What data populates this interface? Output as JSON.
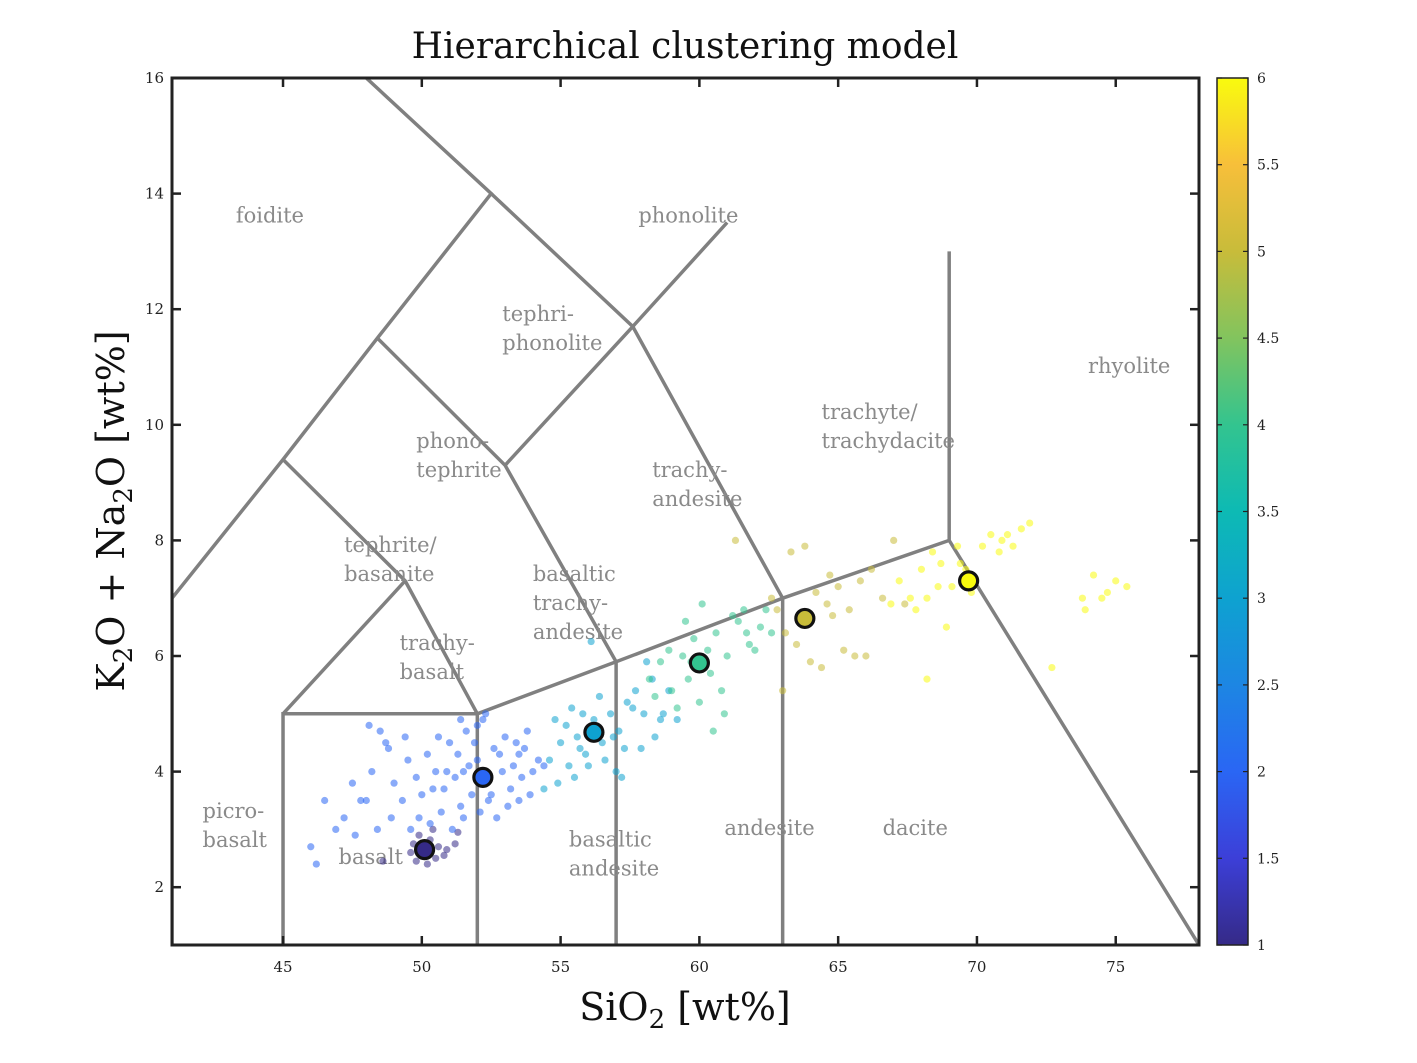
{
  "chart_data": {
    "type": "scatter",
    "title": "Hierarchical clustering model",
    "xlabel": {
      "main": "SiO",
      "sub": "2",
      "unit": " [wt%]"
    },
    "ylabel": {
      "p1": "K",
      "s1": "2",
      "p2": "O + Na",
      "s2": "2",
      "p3": "O [wt%]"
    },
    "xlim": [
      41,
      78
    ],
    "ylim": [
      1,
      16
    ],
    "xticks": [
      45,
      50,
      55,
      60,
      65,
      70,
      75
    ],
    "yticks": [
      2,
      4,
      6,
      8,
      10,
      12,
      14,
      16
    ],
    "grid": false,
    "colorbar": {
      "range": [
        1,
        6
      ],
      "ticks": [
        "1",
        "1.5",
        "2",
        "2.5",
        "3",
        "3.5",
        "4",
        "4.5",
        "5",
        "5.5",
        "6"
      ],
      "colormap": "parula"
    },
    "tas_fields": [
      {
        "name": "foidite",
        "lines": [
          "foidite"
        ],
        "x": 43.3,
        "y": 13.5
      },
      {
        "name": "phonolite",
        "lines": [
          "phonolite"
        ],
        "x": 57.8,
        "y": 13.5
      },
      {
        "name": "tephriphonolite",
        "lines": [
          "tephri-",
          "phonolite"
        ],
        "x": 52.9,
        "y": 11.8
      },
      {
        "name": "phonotephrite",
        "lines": [
          "phono-",
          "tephrite"
        ],
        "x": 49.8,
        "y": 9.6
      },
      {
        "name": "trachyandesite",
        "lines": [
          "trachy-",
          "andesite"
        ],
        "x": 58.3,
        "y": 9.1
      },
      {
        "name": "trachyte",
        "lines": [
          "trachyte/",
          "trachydacite"
        ],
        "x": 64.4,
        "y": 10.1
      },
      {
        "name": "rhyolite",
        "lines": [
          "rhyolite"
        ],
        "x": 74.0,
        "y": 10.9
      },
      {
        "name": "tephrite",
        "lines": [
          "tephrite/",
          "basanite"
        ],
        "x": 47.2,
        "y": 7.8
      },
      {
        "name": "basaltic trachyandesite",
        "lines": [
          "basaltic",
          "trachy-",
          "andesite"
        ],
        "x": 54.0,
        "y": 7.3
      },
      {
        "name": "trachybasalt",
        "lines": [
          "trachy-",
          "basalt"
        ],
        "x": 49.2,
        "y": 6.1
      },
      {
        "name": "picrobasalt",
        "lines": [
          "picro-",
          "basalt"
        ],
        "x": 42.1,
        "y": 3.2
      },
      {
        "name": "basalt",
        "lines": [
          "basalt"
        ],
        "x": 47.0,
        "y": 2.4
      },
      {
        "name": "basaltic andesite",
        "lines": [
          "basaltic",
          "andesite"
        ],
        "x": 55.3,
        "y": 2.7
      },
      {
        "name": "andesite",
        "lines": [
          "andesite"
        ],
        "x": 60.9,
        "y": 2.9
      },
      {
        "name": "dacite",
        "lines": [
          "dacite"
        ],
        "x": 66.6,
        "y": 2.9
      }
    ],
    "boundaries": [
      [
        [
          41,
          7
        ],
        [
          45,
          9.4
        ],
        [
          48.4,
          11.5
        ],
        [
          52.5,
          14
        ],
        [
          48,
          16
        ]
      ],
      [
        [
          41,
          1
        ],
        [
          41,
          7
        ]
      ],
      [
        [
          45,
          1
        ],
        [
          45,
          5
        ],
        [
          52,
          5
        ],
        [
          52,
          1
        ]
      ],
      [
        [
          52,
          5
        ],
        [
          57,
          5.9
        ],
        [
          63,
          7
        ],
        [
          69,
          8
        ]
      ],
      [
        [
          57,
          1
        ],
        [
          57,
          5.9
        ]
      ],
      [
        [
          63,
          1
        ],
        [
          63,
          7
        ]
      ],
      [
        [
          45,
          9.4
        ],
        [
          49.4,
          7.3
        ],
        [
          52,
          5
        ]
      ],
      [
        [
          45,
          5
        ],
        [
          49.4,
          7.3
        ]
      ],
      [
        [
          48.4,
          11.5
        ],
        [
          53,
          9.3
        ],
        [
          57,
          5.9
        ]
      ],
      [
        [
          52.5,
          14
        ],
        [
          57.6,
          11.7
        ],
        [
          61,
          13.5
        ]
      ],
      [
        [
          53,
          9.3
        ],
        [
          57.6,
          11.7
        ],
        [
          63,
          7
        ]
      ],
      [
        [
          69,
          13
        ],
        [
          69,
          8
        ],
        [
          78,
          1
        ]
      ]
    ],
    "cluster_centers": [
      {
        "cluster": 1,
        "x": 50.1,
        "y": 2.65
      },
      {
        "cluster": 2,
        "x": 52.2,
        "y": 3.9
      },
      {
        "cluster": 3,
        "x": 56.2,
        "y": 4.68
      },
      {
        "cluster": 4,
        "x": 60.0,
        "y": 5.88
      },
      {
        "cluster": 5,
        "x": 63.8,
        "y": 6.65
      },
      {
        "cluster": 6,
        "x": 69.7,
        "y": 7.3
      }
    ],
    "series": [
      {
        "cluster": 1,
        "points": [
          [
            50.1,
            2.62
          ],
          [
            49.8,
            2.45
          ],
          [
            50.3,
            2.82
          ],
          [
            50.5,
            2.5
          ],
          [
            49.9,
            2.9
          ],
          [
            50.6,
            2.7
          ],
          [
            49.6,
            2.6
          ],
          [
            50.2,
            2.4
          ],
          [
            50.4,
            3.0
          ],
          [
            49.7,
            2.75
          ],
          [
            50.8,
            2.55
          ],
          [
            51.2,
            2.75
          ],
          [
            51.3,
            2.95
          ],
          [
            50.0,
            2.55
          ],
          [
            48.6,
            2.45
          ],
          [
            50.9,
            2.65
          ]
        ]
      },
      {
        "cluster": 2,
        "points": [
          [
            51.5,
            4.0
          ],
          [
            51.8,
            3.6
          ],
          [
            52.0,
            4.2
          ],
          [
            52.3,
            3.8
          ],
          [
            52.6,
            4.4
          ],
          [
            52.9,
            4.0
          ],
          [
            53.2,
            3.7
          ],
          [
            53.5,
            4.3
          ],
          [
            51.2,
            3.9
          ],
          [
            51.0,
            4.5
          ],
          [
            51.6,
            4.7
          ],
          [
            52.1,
            3.3
          ],
          [
            52.4,
            3.5
          ],
          [
            52.7,
            3.2
          ],
          [
            53.0,
            4.6
          ],
          [
            53.3,
            4.1
          ],
          [
            53.6,
            3.9
          ],
          [
            53.9,
            3.6
          ],
          [
            54.2,
            4.2
          ],
          [
            51.4,
            3.4
          ],
          [
            50.8,
            3.7
          ],
          [
            50.5,
            4.0
          ],
          [
            50.2,
            4.3
          ],
          [
            50.0,
            3.6
          ],
          [
            49.8,
            3.9
          ],
          [
            49.5,
            4.2
          ],
          [
            49.3,
            3.5
          ],
          [
            49.0,
            3.8
          ],
          [
            48.8,
            4.4
          ],
          [
            48.5,
            4.7
          ],
          [
            48.2,
            4.0
          ],
          [
            47.8,
            3.5
          ],
          [
            47.5,
            3.8
          ],
          [
            47.2,
            3.2
          ],
          [
            46.9,
            3.0
          ],
          [
            46.5,
            3.5
          ],
          [
            46.0,
            2.7
          ],
          [
            48.0,
            3.5
          ],
          [
            49.6,
            3.0
          ],
          [
            49.9,
            3.2
          ],
          [
            50.3,
            3.1
          ],
          [
            50.7,
            3.3
          ],
          [
            51.1,
            3.0
          ],
          [
            51.5,
            3.2
          ],
          [
            52.5,
            3.6
          ],
          [
            52.8,
            4.3
          ],
          [
            53.4,
            4.5
          ],
          [
            53.7,
            4.4
          ],
          [
            54.0,
            4.0
          ],
          [
            52.2,
            4.9
          ],
          [
            51.9,
            4.5
          ],
          [
            51.3,
            4.3
          ],
          [
            50.6,
            4.6
          ],
          [
            49.4,
            4.6
          ],
          [
            48.9,
            3.2
          ],
          [
            47.6,
            2.9
          ],
          [
            46.2,
            2.4
          ],
          [
            48.4,
            3.0
          ],
          [
            53.1,
            3.4
          ],
          [
            52.0,
            4.8
          ],
          [
            51.7,
            4.1
          ],
          [
            50.9,
            4.0
          ],
          [
            50.4,
            3.7
          ],
          [
            53.8,
            4.7
          ],
          [
            54.4,
            4.1
          ],
          [
            53.5,
            3.5
          ],
          [
            52.3,
            5.0
          ],
          [
            51.4,
            4.9
          ],
          [
            48.7,
            4.5
          ],
          [
            48.1,
            4.8
          ]
        ]
      },
      {
        "cluster": 3,
        "points": [
          [
            54.6,
            4.2
          ],
          [
            55.0,
            4.5
          ],
          [
            55.3,
            4.1
          ],
          [
            55.6,
            4.6
          ],
          [
            55.9,
            4.3
          ],
          [
            56.2,
            4.9
          ],
          [
            56.5,
            4.5
          ],
          [
            56.8,
            5.0
          ],
          [
            57.1,
            4.7
          ],
          [
            57.4,
            5.2
          ],
          [
            57.7,
            5.4
          ],
          [
            58.0,
            5.0
          ],
          [
            58.3,
            5.6
          ],
          [
            58.6,
            4.9
          ],
          [
            55.2,
            4.8
          ],
          [
            55.8,
            5.0
          ],
          [
            56.0,
            4.1
          ],
          [
            56.6,
            4.2
          ],
          [
            57.0,
            4.0
          ],
          [
            57.2,
            3.9
          ],
          [
            55.5,
            3.9
          ],
          [
            54.9,
            3.8
          ],
          [
            54.4,
            3.7
          ],
          [
            56.4,
            5.3
          ],
          [
            57.6,
            5.1
          ],
          [
            58.9,
            5.4
          ],
          [
            59.2,
            4.9
          ],
          [
            58.4,
            4.6
          ],
          [
            57.9,
            4.4
          ],
          [
            56.1,
            6.25
          ],
          [
            54.8,
            4.9
          ],
          [
            55.7,
            4.4
          ],
          [
            57.3,
            4.4
          ],
          [
            58.1,
            5.9
          ],
          [
            58.7,
            5.0
          ],
          [
            56.9,
            4.6
          ],
          [
            55.4,
            5.1
          ]
        ]
      },
      {
        "cluster": 4,
        "points": [
          [
            58.2,
            5.6
          ],
          [
            58.6,
            5.9
          ],
          [
            59.0,
            5.4
          ],
          [
            59.4,
            6.0
          ],
          [
            59.8,
            6.3
          ],
          [
            60.2,
            5.8
          ],
          [
            60.6,
            6.4
          ],
          [
            61.0,
            6.0
          ],
          [
            61.4,
            6.6
          ],
          [
            61.8,
            6.2
          ],
          [
            62.2,
            6.5
          ],
          [
            62.6,
            6.4
          ],
          [
            59.2,
            5.1
          ],
          [
            59.6,
            5.6
          ],
          [
            60.0,
            5.2
          ],
          [
            60.4,
            5.7
          ],
          [
            60.8,
            5.4
          ],
          [
            61.2,
            6.7
          ],
          [
            61.6,
            6.8
          ],
          [
            62.0,
            6.1
          ],
          [
            58.9,
            6.1
          ],
          [
            59.5,
            6.6
          ],
          [
            60.1,
            6.9
          ],
          [
            60.5,
            4.7
          ],
          [
            60.9,
            5.0
          ],
          [
            61.7,
            6.4
          ],
          [
            62.4,
            6.8
          ],
          [
            60.3,
            6.1
          ],
          [
            59.7,
            5.9
          ],
          [
            58.4,
            5.3
          ]
        ]
      },
      {
        "cluster": 5,
        "points": [
          [
            61.3,
            8.0
          ],
          [
            63.3,
            7.8
          ],
          [
            63.8,
            7.9
          ],
          [
            64.2,
            7.1
          ],
          [
            64.6,
            6.9
          ],
          [
            65.0,
            7.2
          ],
          [
            65.4,
            6.8
          ],
          [
            65.8,
            7.3
          ],
          [
            66.2,
            7.5
          ],
          [
            66.6,
            7.0
          ],
          [
            67.0,
            8.0
          ],
          [
            67.4,
            6.9
          ],
          [
            62.8,
            6.8
          ],
          [
            63.1,
            6.4
          ],
          [
            63.5,
            6.2
          ],
          [
            64.8,
            6.7
          ],
          [
            65.2,
            6.1
          ],
          [
            65.6,
            6.0
          ],
          [
            66.0,
            6.0
          ],
          [
            64.0,
            5.9
          ],
          [
            64.4,
            5.8
          ],
          [
            63.0,
            5.4
          ],
          [
            63.9,
            6.6
          ],
          [
            64.7,
            7.4
          ],
          [
            62.6,
            7.0
          ]
        ]
      },
      {
        "cluster": 6,
        "points": [
          [
            67.2,
            7.3
          ],
          [
            67.6,
            7.0
          ],
          [
            68.0,
            7.5
          ],
          [
            68.4,
            7.8
          ],
          [
            68.7,
            7.6
          ],
          [
            69.1,
            7.2
          ],
          [
            69.4,
            7.6
          ],
          [
            69.8,
            7.1
          ],
          [
            70.2,
            7.9
          ],
          [
            70.5,
            8.1
          ],
          [
            70.9,
            8.0
          ],
          [
            71.3,
            7.9
          ],
          [
            71.6,
            8.2
          ],
          [
            71.9,
            8.3
          ],
          [
            68.6,
            7.2
          ],
          [
            69.3,
            7.9
          ],
          [
            68.2,
            7.0
          ],
          [
            67.8,
            6.8
          ],
          [
            66.9,
            6.9
          ],
          [
            68.9,
            6.5
          ],
          [
            68.2,
            5.6
          ],
          [
            72.7,
            5.8
          ],
          [
            73.8,
            7.0
          ],
          [
            74.2,
            7.4
          ],
          [
            74.7,
            7.1
          ],
          [
            75.0,
            7.3
          ],
          [
            75.4,
            7.2
          ],
          [
            73.9,
            6.8
          ],
          [
            74.5,
            7.0
          ],
          [
            70.8,
            7.8
          ],
          [
            71.1,
            8.1
          ],
          [
            69.6,
            7.5
          ]
        ]
      }
    ]
  }
}
